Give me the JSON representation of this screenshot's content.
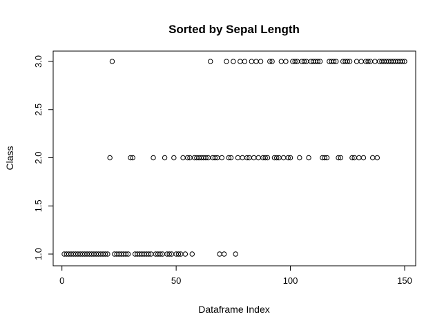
{
  "chart_data": {
    "type": "scatter",
    "title": "Sorted by Sepal Length",
    "xlabel": "Dataframe Index",
    "ylabel": "Class",
    "xlim": [
      1,
      150
    ],
    "ylim": [
      1,
      3
    ],
    "x_ticks": [
      0,
      50,
      100,
      150
    ],
    "x_tick_labels": [
      "0",
      "50",
      "100",
      "150"
    ],
    "y_ticks": [
      1.0,
      1.5,
      2.0,
      2.5,
      3.0
    ],
    "y_tick_labels": [
      "1.0",
      "1.5",
      "2.0",
      "2.5",
      "3.0"
    ],
    "grid": false,
    "marker": "open-circle",
    "colors": {
      "points": "#000000",
      "axes": "#000000",
      "background": "#ffffff"
    },
    "points": [
      {
        "x": 1,
        "y": 1
      },
      {
        "x": 2,
        "y": 1
      },
      {
        "x": 3,
        "y": 1
      },
      {
        "x": 4,
        "y": 1
      },
      {
        "x": 5,
        "y": 1
      },
      {
        "x": 6,
        "y": 1
      },
      {
        "x": 7,
        "y": 1
      },
      {
        "x": 8,
        "y": 1
      },
      {
        "x": 9,
        "y": 1
      },
      {
        "x": 10,
        "y": 1
      },
      {
        "x": 11,
        "y": 1
      },
      {
        "x": 12,
        "y": 1
      },
      {
        "x": 13,
        "y": 1
      },
      {
        "x": 14,
        "y": 1
      },
      {
        "x": 15,
        "y": 1
      },
      {
        "x": 16,
        "y": 1
      },
      {
        "x": 17,
        "y": 1
      },
      {
        "x": 18,
        "y": 1
      },
      {
        "x": 19,
        "y": 1
      },
      {
        "x": 20,
        "y": 1
      },
      {
        "x": 21,
        "y": 2
      },
      {
        "x": 22,
        "y": 3
      },
      {
        "x": 23,
        "y": 1
      },
      {
        "x": 24,
        "y": 1
      },
      {
        "x": 25,
        "y": 1
      },
      {
        "x": 26,
        "y": 1
      },
      {
        "x": 27,
        "y": 1
      },
      {
        "x": 28,
        "y": 1
      },
      {
        "x": 29,
        "y": 1
      },
      {
        "x": 30,
        "y": 2
      },
      {
        "x": 31,
        "y": 2
      },
      {
        "x": 32,
        "y": 1
      },
      {
        "x": 33,
        "y": 1
      },
      {
        "x": 34,
        "y": 1
      },
      {
        "x": 35,
        "y": 1
      },
      {
        "x": 36,
        "y": 1
      },
      {
        "x": 37,
        "y": 1
      },
      {
        "x": 38,
        "y": 1
      },
      {
        "x": 39,
        "y": 1
      },
      {
        "x": 40,
        "y": 2
      },
      {
        "x": 41,
        "y": 1
      },
      {
        "x": 42,
        "y": 1
      },
      {
        "x": 43,
        "y": 1
      },
      {
        "x": 44,
        "y": 1
      },
      {
        "x": 45,
        "y": 2
      },
      {
        "x": 46,
        "y": 1
      },
      {
        "x": 47,
        "y": 1
      },
      {
        "x": 48,
        "y": 1
      },
      {
        "x": 49,
        "y": 2
      },
      {
        "x": 50,
        "y": 1
      },
      {
        "x": 51,
        "y": 1
      },
      {
        "x": 52,
        "y": 1
      },
      {
        "x": 53,
        "y": 2
      },
      {
        "x": 54,
        "y": 1
      },
      {
        "x": 55,
        "y": 2
      },
      {
        "x": 56,
        "y": 2
      },
      {
        "x": 57,
        "y": 1
      },
      {
        "x": 58,
        "y": 2
      },
      {
        "x": 59,
        "y": 2
      },
      {
        "x": 60,
        "y": 2
      },
      {
        "x": 61,
        "y": 2
      },
      {
        "x": 62,
        "y": 2
      },
      {
        "x": 63,
        "y": 2
      },
      {
        "x": 64,
        "y": 2
      },
      {
        "x": 65,
        "y": 3
      },
      {
        "x": 66,
        "y": 2
      },
      {
        "x": 67,
        "y": 2
      },
      {
        "x": 68,
        "y": 2
      },
      {
        "x": 69,
        "y": 1
      },
      {
        "x": 70,
        "y": 2
      },
      {
        "x": 71,
        "y": 1
      },
      {
        "x": 72,
        "y": 3
      },
      {
        "x": 73,
        "y": 2
      },
      {
        "x": 74,
        "y": 2
      },
      {
        "x": 75,
        "y": 3
      },
      {
        "x": 76,
        "y": 1
      },
      {
        "x": 77,
        "y": 2
      },
      {
        "x": 78,
        "y": 3
      },
      {
        "x": 79,
        "y": 2
      },
      {
        "x": 80,
        "y": 3
      },
      {
        "x": 81,
        "y": 2
      },
      {
        "x": 82,
        "y": 2
      },
      {
        "x": 83,
        "y": 3
      },
      {
        "x": 84,
        "y": 2
      },
      {
        "x": 85,
        "y": 3
      },
      {
        "x": 86,
        "y": 2
      },
      {
        "x": 87,
        "y": 3
      },
      {
        "x": 88,
        "y": 2
      },
      {
        "x": 89,
        "y": 2
      },
      {
        "x": 90,
        "y": 2
      },
      {
        "x": 91,
        "y": 3
      },
      {
        "x": 92,
        "y": 3
      },
      {
        "x": 93,
        "y": 2
      },
      {
        "x": 94,
        "y": 2
      },
      {
        "x": 95,
        "y": 2
      },
      {
        "x": 96,
        "y": 3
      },
      {
        "x": 97,
        "y": 2
      },
      {
        "x": 98,
        "y": 3
      },
      {
        "x": 99,
        "y": 2
      },
      {
        "x": 100,
        "y": 2
      },
      {
        "x": 101,
        "y": 3
      },
      {
        "x": 102,
        "y": 3
      },
      {
        "x": 103,
        "y": 3
      },
      {
        "x": 104,
        "y": 2
      },
      {
        "x": 105,
        "y": 3
      },
      {
        "x": 106,
        "y": 3
      },
      {
        "x": 107,
        "y": 3
      },
      {
        "x": 108,
        "y": 2
      },
      {
        "x": 109,
        "y": 3
      },
      {
        "x": 110,
        "y": 3
      },
      {
        "x": 111,
        "y": 3
      },
      {
        "x": 112,
        "y": 3
      },
      {
        "x": 113,
        "y": 3
      },
      {
        "x": 114,
        "y": 2
      },
      {
        "x": 115,
        "y": 2
      },
      {
        "x": 116,
        "y": 2
      },
      {
        "x": 117,
        "y": 3
      },
      {
        "x": 118,
        "y": 3
      },
      {
        "x": 119,
        "y": 3
      },
      {
        "x": 120,
        "y": 3
      },
      {
        "x": 121,
        "y": 2
      },
      {
        "x": 122,
        "y": 2
      },
      {
        "x": 123,
        "y": 3
      },
      {
        "x": 124,
        "y": 3
      },
      {
        "x": 125,
        "y": 3
      },
      {
        "x": 126,
        "y": 3
      },
      {
        "x": 127,
        "y": 2
      },
      {
        "x": 128,
        "y": 2
      },
      {
        "x": 129,
        "y": 3
      },
      {
        "x": 130,
        "y": 2
      },
      {
        "x": 131,
        "y": 3
      },
      {
        "x": 132,
        "y": 2
      },
      {
        "x": 133,
        "y": 3
      },
      {
        "x": 134,
        "y": 3
      },
      {
        "x": 135,
        "y": 3
      },
      {
        "x": 136,
        "y": 2
      },
      {
        "x": 137,
        "y": 3
      },
      {
        "x": 138,
        "y": 2
      },
      {
        "x": 139,
        "y": 3
      },
      {
        "x": 140,
        "y": 3
      },
      {
        "x": 141,
        "y": 3
      },
      {
        "x": 142,
        "y": 3
      },
      {
        "x": 143,
        "y": 3
      },
      {
        "x": 144,
        "y": 3
      },
      {
        "x": 145,
        "y": 3
      },
      {
        "x": 146,
        "y": 3
      },
      {
        "x": 147,
        "y": 3
      },
      {
        "x": 148,
        "y": 3
      },
      {
        "x": 149,
        "y": 3
      },
      {
        "x": 150,
        "y": 3
      }
    ]
  }
}
